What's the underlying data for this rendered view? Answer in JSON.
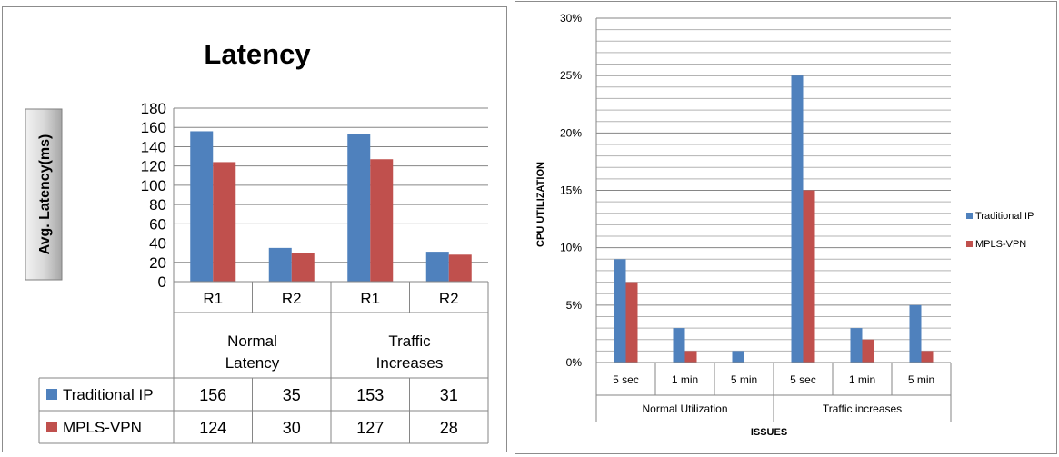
{
  "chart_data": [
    {
      "type": "bar",
      "title": "Latency",
      "ylabel": "Avg. Latency(ms)",
      "xlabel": "",
      "ylim": [
        0,
        180
      ],
      "yticks": [
        0,
        20,
        40,
        60,
        80,
        100,
        120,
        140,
        160,
        180
      ],
      "categories": [
        "R1",
        "R2",
        "R1",
        "R2"
      ],
      "groups": [
        {
          "label": "Normal Latency",
          "lines": [
            "Normal",
            "Latency"
          ]
        },
        {
          "label": "Traffic Increases",
          "lines": [
            "Traffic",
            "Increases"
          ]
        }
      ],
      "series": [
        {
          "name": "Traditional IP",
          "color": "#4f81bd",
          "values": [
            156,
            35,
            153,
            31
          ]
        },
        {
          "name": "MPLS-VPN",
          "color": "#c0504d",
          "values": [
            124,
            30,
            127,
            28
          ]
        }
      ],
      "grid": true,
      "legend": "data-table"
    },
    {
      "type": "bar",
      "title": "",
      "ylabel": "CPU UTILIZATION",
      "xlabel": "ISSUES",
      "ylim": [
        0,
        30
      ],
      "yticks": [
        "0%",
        "5%",
        "10%",
        "15%",
        "20%",
        "25%",
        "30%"
      ],
      "categories": [
        "5 sec",
        "1 min",
        "5 min",
        "5 sec",
        "1 min",
        "5 min"
      ],
      "groups": [
        {
          "label": "Normal Utilization"
        },
        {
          "label": "Traffic increases"
        }
      ],
      "series": [
        {
          "name": "Traditional IP",
          "color": "#4f81bd",
          "values": [
            9,
            3,
            1,
            25,
            3,
            5
          ]
        },
        {
          "name": "MPLS-VPN",
          "color": "#c0504d",
          "values": [
            7,
            1,
            0,
            15,
            2,
            1
          ]
        }
      ],
      "grid": true,
      "legend": "right"
    }
  ]
}
